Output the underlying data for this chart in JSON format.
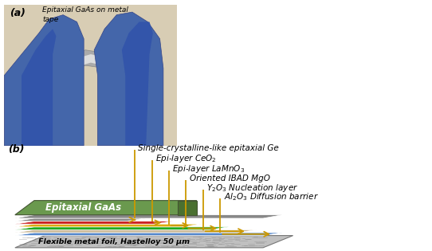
{
  "fig_width": 5.42,
  "fig_height": 3.15,
  "dpi": 100,
  "background_color": "#ffffff",
  "panel_a_label": "(a)",
  "panel_a_caption": "Epitaxial GaAs on metal\ntape",
  "panel_b_label": "(b)",
  "layers": [
    {
      "label": "Single-crystalline-like epitaxial Ge",
      "color": "#888888"
    },
    {
      "label": "Epi-layer CeO$_2$",
      "color": "#cc2222"
    },
    {
      "label": "Epi-layer LaMnO$_3$",
      "color": "#ddaa00"
    },
    {
      "label": "Oriented IBAD MgO",
      "color": "#22aa22"
    },
    {
      "label": "Y$_2$O$_3$ Nucleation layer",
      "color": "#ccbb99"
    },
    {
      "label": "Al$_2$O$_3$ Diffusion barrier",
      "color": "#5588cc"
    }
  ],
  "gaas_color": "#6a994e",
  "gaas_side_color": "#4a7030",
  "gaas_label": "Epitaxial GaAs",
  "metal_foil_label": "Flexible metal foil, Hastelloy 50 μm",
  "arrow_color": "#cc9900",
  "label_fontsize": 7.5
}
